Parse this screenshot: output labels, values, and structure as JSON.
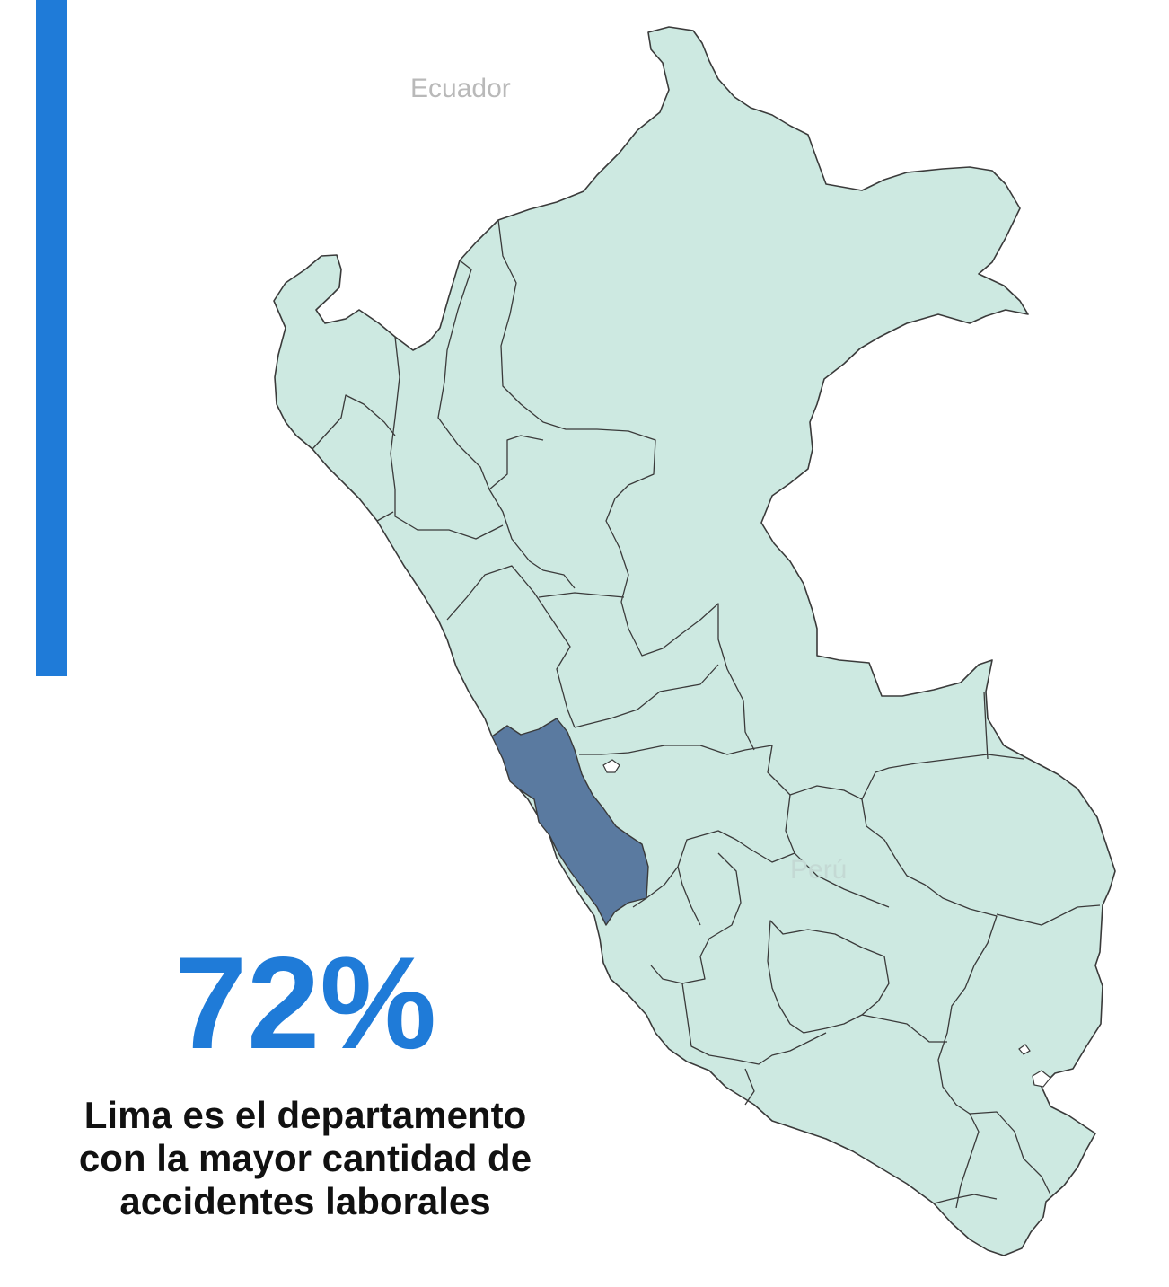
{
  "map": {
    "labels": {
      "ecuador": "Ecuador",
      "peru": "Perú"
    },
    "highlighted_region": "Lima",
    "colors": {
      "land": "#cde9e1",
      "border": "#3a3a3a",
      "highlight": "#5a7aa0",
      "accent": "#1f7bd8"
    }
  },
  "stat": {
    "value": "72%",
    "caption_line1": "Lima es el departamento",
    "caption_line2": "con la mayor cantidad de",
    "caption_line3": "accidentes laborales"
  }
}
